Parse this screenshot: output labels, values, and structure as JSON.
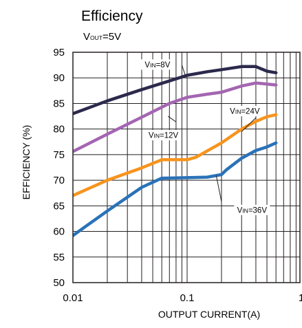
{
  "chart_data": {
    "type": "line",
    "title": "Efficiency",
    "subtitle": {
      "prefix": "V",
      "sub": "OUT",
      "suffix": "=5V"
    },
    "xlabel": "OUTPUT CURRENT(A)",
    "ylabel": "EFFICIENCY (%)",
    "x_scale": "log",
    "xlim": [
      0.01,
      1
    ],
    "ylim": [
      50,
      95
    ],
    "x_ticks": [
      {
        "value": 0.01,
        "label": "0.01"
      },
      {
        "value": 0.1,
        "label": "0.1"
      },
      {
        "value": 1,
        "label": "1"
      }
    ],
    "y_ticks": [
      50,
      55,
      60,
      65,
      70,
      75,
      80,
      85,
      90,
      95
    ],
    "grid": true,
    "series": [
      {
        "label": {
          "prefix": "V",
          "sub": "IN",
          "suffix": "=8V"
        },
        "color": "#2b2a4c",
        "label_at": [
          0.055,
          92.6
        ],
        "leader": [
          [
            0.09,
            92.5
          ],
          [
            0.097,
            90.3
          ]
        ],
        "points": [
          [
            0.01,
            83.0
          ],
          [
            0.02,
            85.5
          ],
          [
            0.04,
            87.7
          ],
          [
            0.07,
            89.4
          ],
          [
            0.1,
            90.5
          ],
          [
            0.15,
            91.2
          ],
          [
            0.2,
            91.6
          ],
          [
            0.3,
            92.2
          ],
          [
            0.4,
            92.2
          ],
          [
            0.5,
            91.3
          ],
          [
            0.6,
            91.0
          ]
        ]
      },
      {
        "label": {
          "prefix": "V",
          "sub": "IN",
          "suffix": "=12V"
        },
        "color": "#a366b1",
        "label_at": [
          0.062,
          78.8
        ],
        "leader": [
          [
            0.08,
            81.4
          ],
          [
            0.068,
            82.5
          ]
        ],
        "points": [
          [
            0.01,
            75.6
          ],
          [
            0.02,
            79.0
          ],
          [
            0.04,
            82.3
          ],
          [
            0.07,
            85.0
          ],
          [
            0.1,
            86.2
          ],
          [
            0.15,
            86.8
          ],
          [
            0.2,
            87.2
          ],
          [
            0.3,
            88.4
          ],
          [
            0.4,
            89.0
          ],
          [
            0.5,
            88.8
          ],
          [
            0.6,
            88.6
          ]
        ]
      },
      {
        "label": {
          "prefix": "V",
          "sub": "IN",
          "suffix": "=24V"
        },
        "color": "#f7941d",
        "label_at": [
          0.32,
          83.5
        ],
        "leader": [
          [
            0.4,
            82.2
          ],
          [
            0.3,
            79.5
          ]
        ],
        "points": [
          [
            0.01,
            67.0
          ],
          [
            0.02,
            70.0
          ],
          [
            0.04,
            72.4
          ],
          [
            0.06,
            74.0
          ],
          [
            0.1,
            74.0
          ],
          [
            0.12,
            74.5
          ],
          [
            0.2,
            77.3
          ],
          [
            0.3,
            80.0
          ],
          [
            0.4,
            81.5
          ],
          [
            0.5,
            82.4
          ],
          [
            0.6,
            82.8
          ]
        ]
      },
      {
        "label": {
          "prefix": "V",
          "sub": "IN",
          "suffix": "=36V"
        },
        "color": "#2a72b8",
        "label_at": [
          0.37,
          64.2
        ],
        "leader": [
          [
            0.2,
            65.8
          ],
          [
            0.18,
            70.9
          ]
        ],
        "points": [
          [
            0.01,
            59.2
          ],
          [
            0.02,
            64.0
          ],
          [
            0.04,
            68.6
          ],
          [
            0.06,
            70.4
          ],
          [
            0.1,
            70.5
          ],
          [
            0.15,
            70.6
          ],
          [
            0.2,
            71.1
          ],
          [
            0.22,
            72.0
          ],
          [
            0.3,
            74.3
          ],
          [
            0.4,
            75.8
          ],
          [
            0.5,
            76.5
          ],
          [
            0.6,
            77.3
          ]
        ]
      }
    ]
  }
}
